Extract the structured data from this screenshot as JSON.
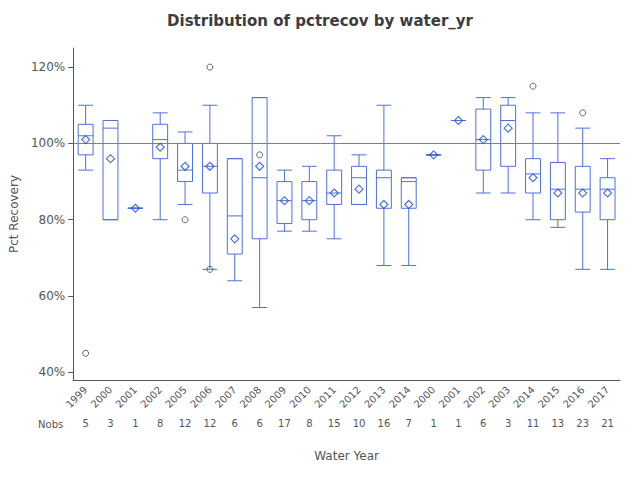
{
  "chart_data": {
    "type": "boxplot",
    "title": "Distribution of pctrecov by water_yr",
    "xlabel": "Water Year",
    "ylabel": "Pct Recovery",
    "categories": [
      "1999",
      "2000",
      "2001",
      "2002",
      "2005",
      "2006",
      "2007",
      "2008",
      "2009",
      "2010",
      "2011",
      "2012",
      "2013",
      "2014",
      "2000",
      "2001",
      "2002",
      "2003",
      "2014",
      "2015",
      "2016",
      "2017"
    ],
    "nobs_label": "Nobs",
    "nobs": [
      5,
      3,
      1,
      8,
      12,
      12,
      6,
      6,
      17,
      8,
      15,
      10,
      16,
      7,
      1,
      1,
      6,
      3,
      11,
      13,
      23,
      21
    ],
    "boxes": [
      {
        "q1": 97,
        "median": 102,
        "q3": 105,
        "whislo": 93,
        "whishi": 110,
        "mean": 101,
        "fliers": [
          45
        ]
      },
      {
        "q1": 80,
        "median": 104,
        "q3": 106,
        "whislo": 80,
        "whishi": 106,
        "mean": 96,
        "fliers": []
      },
      {
        "q1": 83,
        "median": 83,
        "q3": 83,
        "whislo": 83,
        "whishi": 83,
        "mean": 83,
        "fliers": []
      },
      {
        "q1": 96,
        "median": 101,
        "q3": 105,
        "whislo": 80,
        "whishi": 108,
        "mean": 99,
        "fliers": []
      },
      {
        "q1": 90,
        "median": 93,
        "q3": 100,
        "whislo": 84,
        "whishi": 103,
        "mean": 94,
        "fliers": [
          80
        ]
      },
      {
        "q1": 87,
        "median": 94,
        "q3": 100,
        "whislo": 67,
        "whishi": 110,
        "mean": 94,
        "fliers": [
          67,
          120
        ]
      },
      {
        "q1": 71,
        "median": 81,
        "q3": 96,
        "whislo": 64,
        "whishi": 96,
        "mean": 75,
        "fliers": []
      },
      {
        "q1": 75,
        "median": 91,
        "q3": 112,
        "whislo": 57,
        "whishi": 112,
        "mean": 94,
        "fliers": [
          97
        ]
      },
      {
        "q1": 79,
        "median": 85,
        "q3": 90,
        "whislo": 77,
        "whishi": 93,
        "mean": 85,
        "fliers": []
      },
      {
        "q1": 80,
        "median": 85,
        "q3": 90,
        "whislo": 77,
        "whishi": 94,
        "mean": 85,
        "fliers": []
      },
      {
        "q1": 84,
        "median": 87,
        "q3": 93,
        "whislo": 75,
        "whishi": 102,
        "mean": 87,
        "fliers": []
      },
      {
        "q1": 84,
        "median": 91,
        "q3": 94,
        "whislo": 84,
        "whishi": 97,
        "mean": 88,
        "fliers": []
      },
      {
        "q1": 83,
        "median": 91,
        "q3": 93,
        "whislo": 68,
        "whishi": 110,
        "mean": 84,
        "fliers": []
      },
      {
        "q1": 83,
        "median": 90,
        "q3": 91,
        "whislo": 68,
        "whishi": 91,
        "mean": 84,
        "fliers": []
      },
      {
        "q1": 97,
        "median": 97,
        "q3": 97,
        "whislo": 97,
        "whishi": 97,
        "mean": 97,
        "fliers": []
      },
      {
        "q1": 106,
        "median": 106,
        "q3": 106,
        "whislo": 106,
        "whishi": 106,
        "mean": 106,
        "fliers": []
      },
      {
        "q1": 93,
        "median": 101,
        "q3": 109,
        "whislo": 87,
        "whishi": 112,
        "mean": 101,
        "fliers": []
      },
      {
        "q1": 94,
        "median": 106,
        "q3": 110,
        "whislo": 87,
        "whishi": 112,
        "mean": 104,
        "fliers": []
      },
      {
        "q1": 87,
        "median": 92,
        "q3": 96,
        "whislo": 80,
        "whishi": 108,
        "mean": 91,
        "fliers": [
          115
        ]
      },
      {
        "q1": 80,
        "median": 88,
        "q3": 95,
        "whislo": 78,
        "whishi": 108,
        "mean": 87,
        "fliers": []
      },
      {
        "q1": 82,
        "median": 88,
        "q3": 94,
        "whislo": 67,
        "whishi": 104,
        "mean": 87,
        "fliers": [
          108
        ]
      },
      {
        "q1": 80,
        "median": 88,
        "q3": 91,
        "whislo": 67,
        "whishi": 96,
        "mean": 87,
        "fliers": []
      }
    ],
    "ref_line": 100,
    "ylim": [
      38,
      125
    ],
    "yticks": [
      {
        "value": 40,
        "label": "40%"
      },
      {
        "value": 60,
        "label": "60%"
      },
      {
        "value": 80,
        "label": "80%"
      },
      {
        "value": 100,
        "label": "100%"
      },
      {
        "value": 120,
        "label": "120%"
      }
    ],
    "grid": false
  }
}
